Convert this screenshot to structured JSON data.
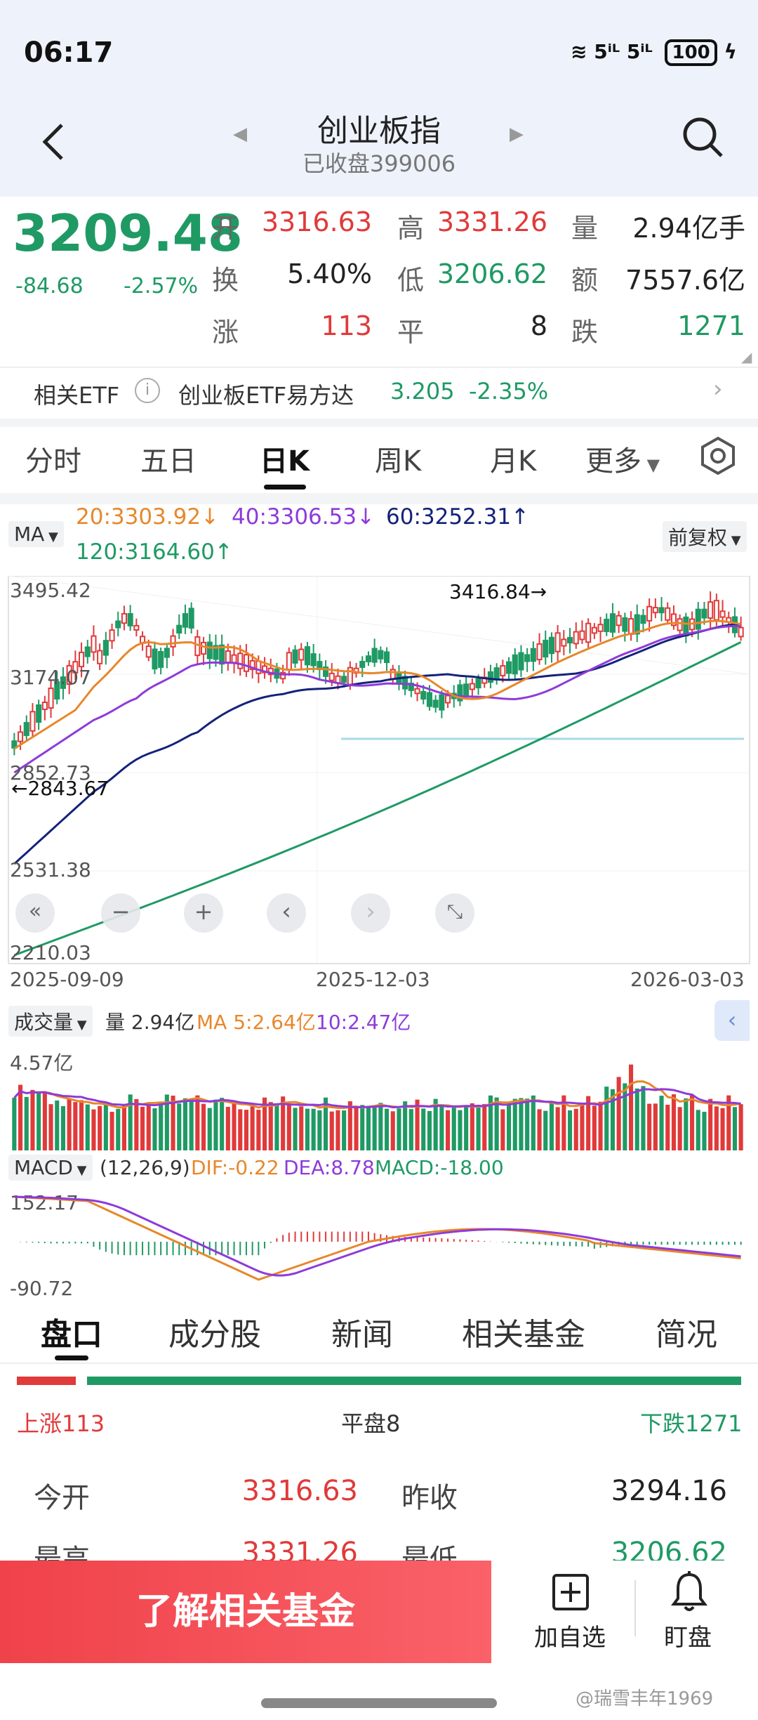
{
  "status_bar": {
    "time": "06:17",
    "network": "5ⁱᴸ 5ⁱᴸ",
    "battery": "100"
  },
  "header": {
    "title": "创业板指",
    "subtitle": "已收盘399006"
  },
  "quote": {
    "price": "3209.48",
    "change": "-84.68",
    "change_pct": "-2.57%",
    "open_label": "开",
    "open": "3316.63",
    "high_label": "高",
    "high": "3331.26",
    "volume_label": "量",
    "volume": "2.94亿手",
    "turnover_label": "换",
    "turnover": "5.40%",
    "low_label": "低",
    "low": "3206.62",
    "amount_label": "额",
    "amount": "7557.6亿",
    "up_label": "涨",
    "up_count": "113",
    "flat_label": "平",
    "flat_count": "8",
    "down_label": "跌",
    "down_count": "1271"
  },
  "etf": {
    "label": "相关ETF",
    "name": "创业板ETF易方达",
    "price": "3.205",
    "pct": "-2.35%"
  },
  "period_tabs": [
    "分时",
    "五日",
    "日K",
    "周K",
    "月K",
    "更多"
  ],
  "ma_legend": {
    "chip": "MA",
    "ma20": "20:3303.92↓",
    "ma40": "40:3306.53↓",
    "ma60": "60:3252.31↑",
    "ma120": "120:3164.60↑",
    "fq": "前复权"
  },
  "kline": {
    "y_labels": [
      "3495.42",
      "3174.07",
      "2852.73",
      "2531.38",
      "2210.03"
    ],
    "max_note": "3416.84→",
    "min_note": "←2843.67",
    "x_labels": [
      "2025-09-09",
      "2025-12-03",
      "2026-03-03"
    ],
    "controls": [
      "«",
      "−",
      "+",
      "‹",
      "›",
      "⤡"
    ]
  },
  "volume": {
    "chip": "成交量",
    "vol": "量 2.94亿",
    "ma5": "MA 5:2.64亿",
    "ma10": "10:2.47亿",
    "max": "4.57亿"
  },
  "macd": {
    "chip": "MACD",
    "params": "(12,26,9)",
    "dif": "DIF:-0.22",
    "dea": "DEA:8.78",
    "macd": "MACD:-18.00",
    "top": "152.17",
    "bottom": "-90.72"
  },
  "bottom_tabs": [
    "盘口",
    "成分股",
    "新闻",
    "相关基金",
    "简况"
  ],
  "breadth": {
    "up": "上涨113",
    "flat": "平盘8",
    "down": "下跌1271",
    "up_ratio": 0.081,
    "flat_ratio": 0.006,
    "down_ratio": 0.913
  },
  "table": {
    "open_label": "今开",
    "open": "3316.63",
    "prev_label": "昨收",
    "prev": "3294.16",
    "high_label": "最高",
    "high": "3331.26",
    "low_label": "最低",
    "low": "3206.62"
  },
  "actions": {
    "cta": "了解相关基金",
    "add": "加自选",
    "watch": "盯盘"
  },
  "watermark": "@瑞雪丰年1969",
  "colors": {
    "up": "#e03a3a",
    "down": "#1f9a64",
    "ma20": "#e8872a",
    "ma40": "#8e3bd9",
    "ma60": "#14227a",
    "ma120": "#1f9a64"
  }
}
